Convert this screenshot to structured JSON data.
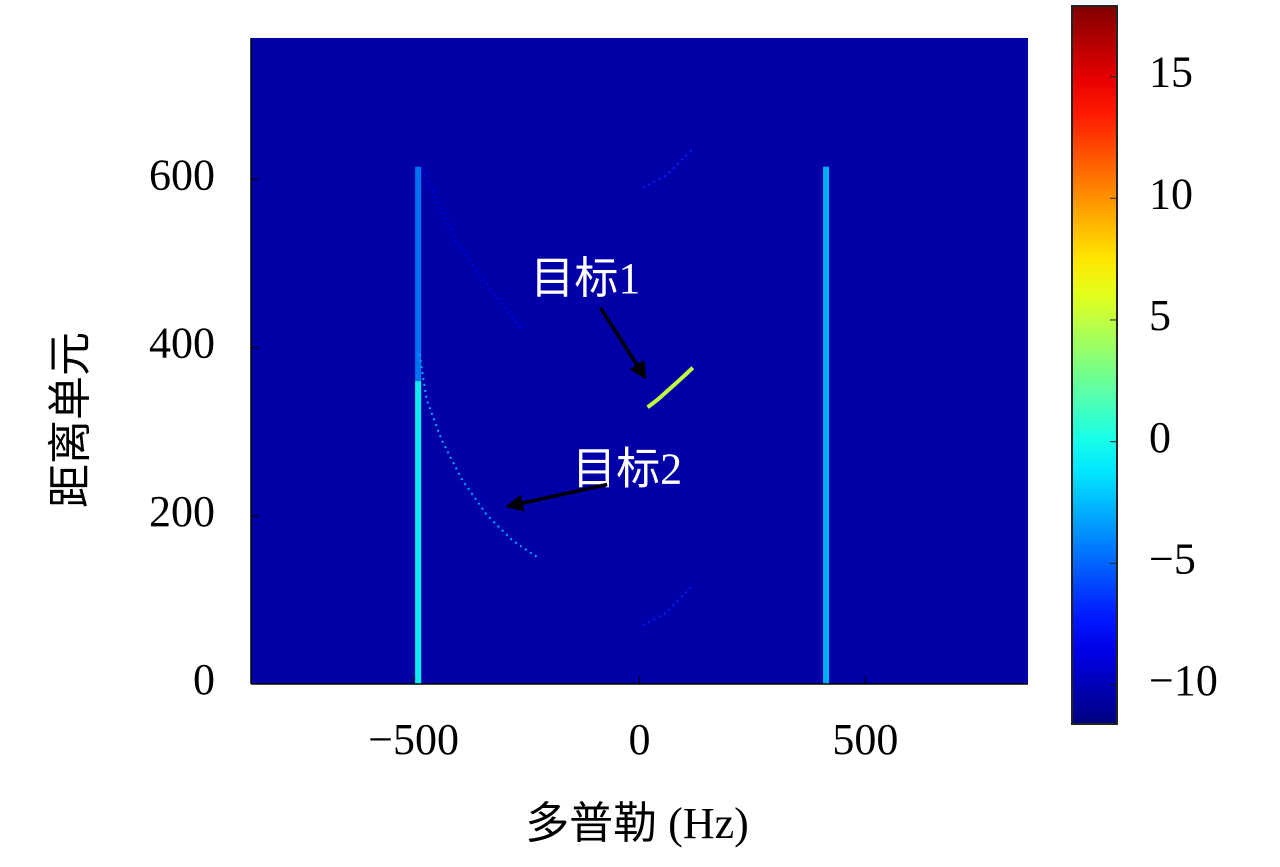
{
  "chart_data": {
    "type": "heatmap",
    "xlabel": "多普勒 (Hz)",
    "ylabel": "距离单元",
    "xlim": [
      -860,
      860
    ],
    "ylim": [
      0,
      768
    ],
    "xticks": [
      {
        "value": -500,
        "label": "−500"
      },
      0,
      500
    ],
    "yticks": [
      0,
      200,
      400,
      600
    ],
    "colormap": "jet",
    "clim": [
      -11.6,
      17.9
    ],
    "cticks": [
      {
        "value": -10,
        "label": "−10"
      },
      {
        "value": -5,
        "label": "−5"
      },
      0,
      5,
      10,
      15
    ],
    "background_value": -10.5,
    "stripes": [
      {
        "x": -490,
        "y": [
          0,
          615
        ],
        "value": -4
      },
      {
        "x": -490,
        "y": [
          0,
          360
        ],
        "value": 0
      },
      {
        "x": 413,
        "y": [
          0,
          615
        ],
        "value": -2
      }
    ],
    "tracks": [
      {
        "x": [
          18,
          40,
          65,
          90,
          118
        ],
        "y": [
          329,
          338,
          350,
          362,
          376
        ],
        "value": 5
      },
      {
        "x": [
          -487,
          -471,
          -438,
          -393,
          -338,
          -282,
          -227
        ],
        "y": [
          392,
          338,
          290,
          243,
          201,
          171,
          151
        ],
        "value": -3
      },
      {
        "x": [
          7,
          60,
          118
        ],
        "y": [
          590,
          605,
          636
        ],
        "value": -7
      },
      {
        "x": [
          7,
          60,
          118
        ],
        "y": [
          70,
          85,
          118
        ],
        "value": -7
      },
      {
        "x": [
          -482,
          -400,
          -330,
          -260
        ],
        "y": [
          612,
          520,
          470,
          421
        ],
        "value": -8
      }
    ],
    "annotations": [
      {
        "text": "目标1",
        "xy": [
          13,
          364
        ]
      },
      {
        "text": "目标2",
        "xy": [
          -293,
          211
        ]
      }
    ]
  }
}
